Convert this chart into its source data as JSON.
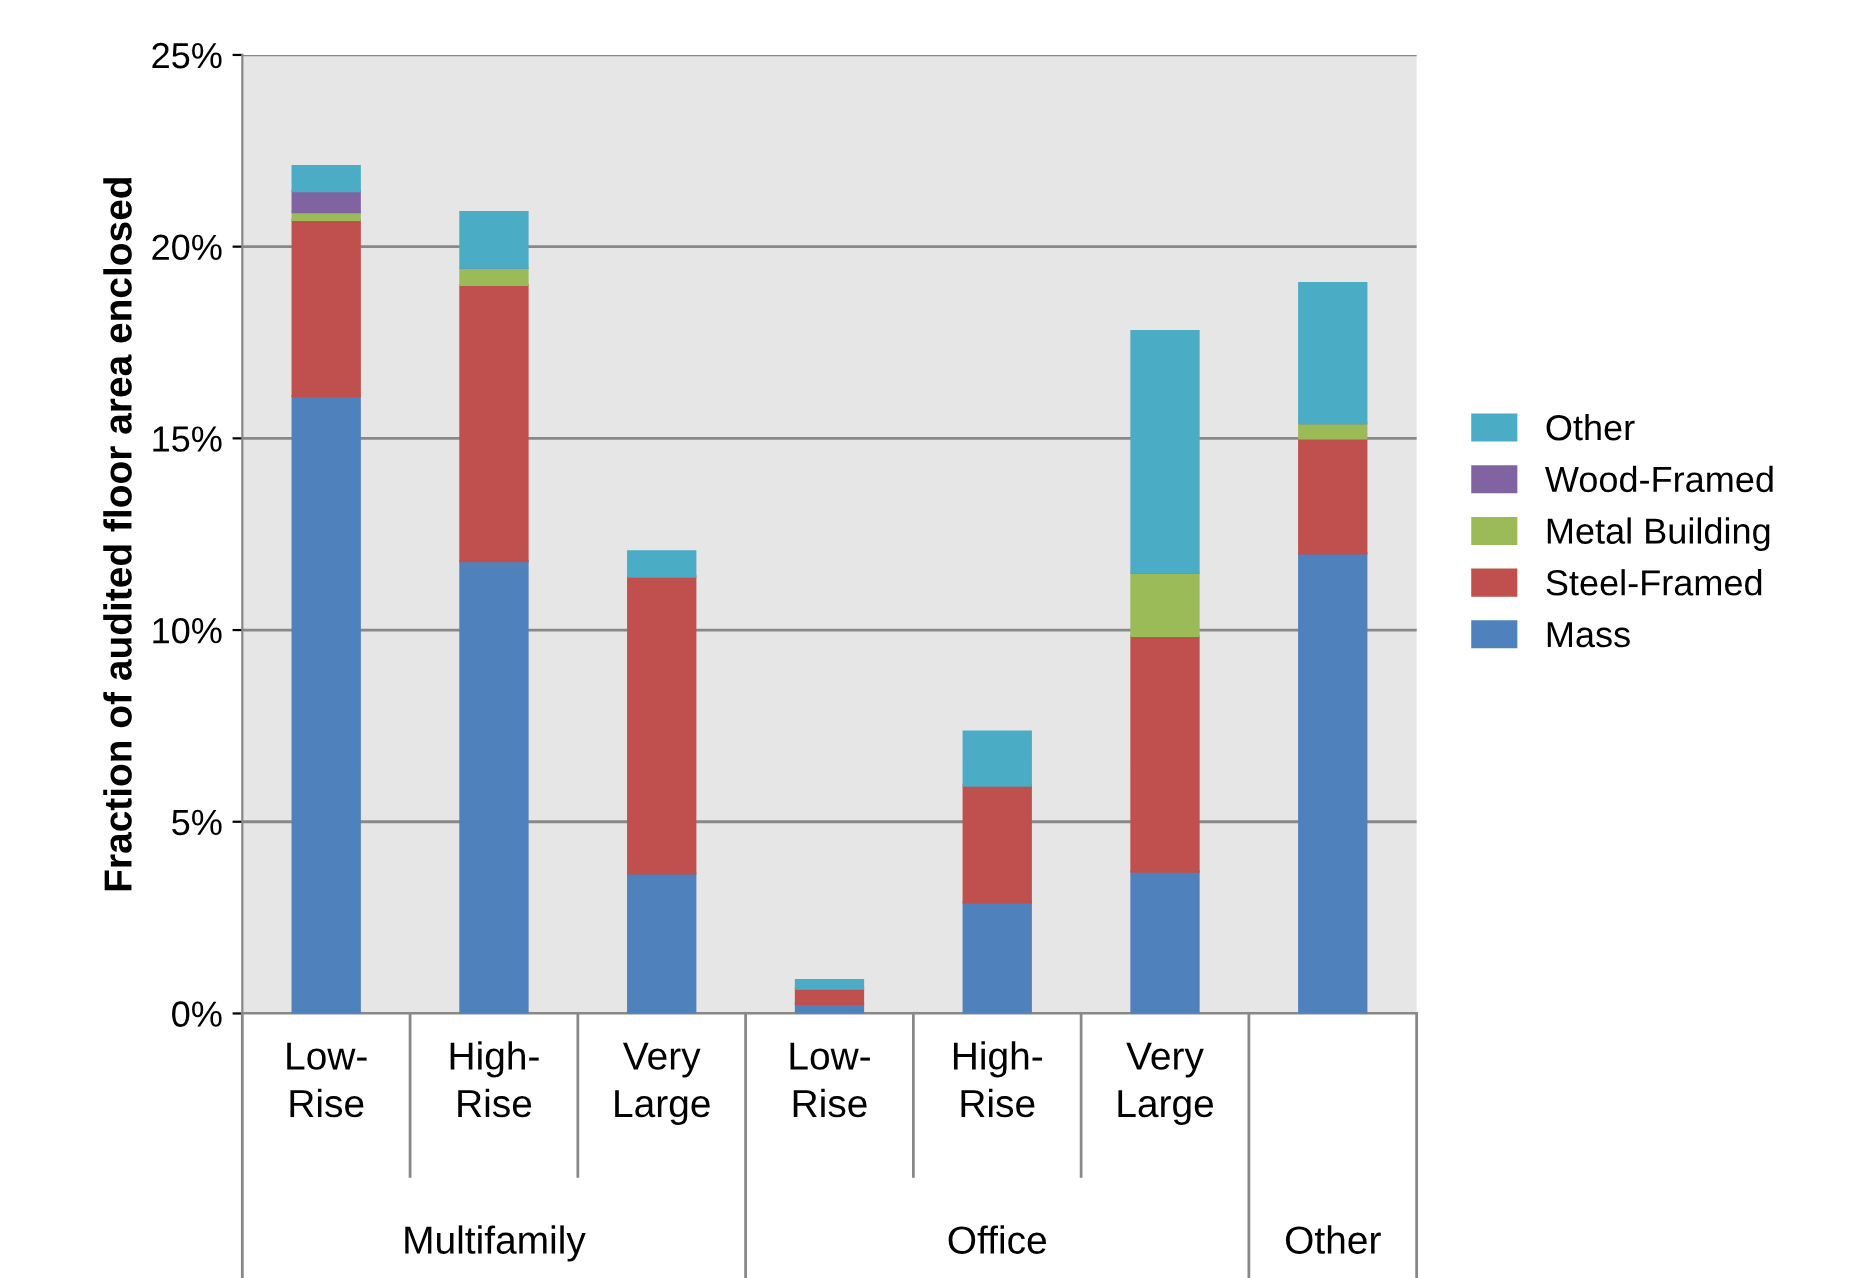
{
  "chart_data": {
    "type": "bar",
    "stacked": true,
    "ylabel": "Fraction of audited floor area enclosed",
    "categories": [
      "Low-\nRise",
      "High-\nRise",
      "Very\nLarge",
      "Low-\nRise",
      "High-\nRise",
      "Very\nLarge",
      null
    ],
    "series": [
      {
        "name": "Mass",
        "color": "#4f81bd",
        "values": [
          16.1,
          11.8,
          3.65,
          0.25,
          2.9,
          3.7,
          12.0
        ]
      },
      {
        "name": "Steel-Framed",
        "color": "#c0504d",
        "values": [
          4.6,
          7.2,
          7.75,
          0.4,
          3.05,
          6.15,
          3.0
        ]
      },
      {
        "name": "Metal Building",
        "color": "#9bbb59",
        "values": [
          0.2,
          0.45,
          0,
          0,
          0,
          1.65,
          0.4
        ]
      },
      {
        "name": "Wood-Framed",
        "color": "#8064a2",
        "values": [
          0.55,
          0,
          0,
          0,
          0,
          0,
          0
        ]
      },
      {
        "name": "Other",
        "color": "#4bacc6",
        "values": [
          0.65,
          1.45,
          0.65,
          0.22,
          1.4,
          6.3,
          3.65
        ]
      }
    ],
    "annotations": [
      "Multifamily",
      "Office",
      "Other"
    ],
    "ylim": [
      0,
      25
    ],
    "yticks": [
      {
        "value": 0,
        "label": "0%"
      },
      {
        "value": 5,
        "label": "5%"
      },
      {
        "value": 10,
        "label": "10%"
      },
      {
        "value": 15,
        "label": "15%"
      },
      {
        "value": 20,
        "label": "20%"
      },
      {
        "value": 25,
        "label": "25%"
      }
    ],
    "grid": "y",
    "legend": "right"
  }
}
